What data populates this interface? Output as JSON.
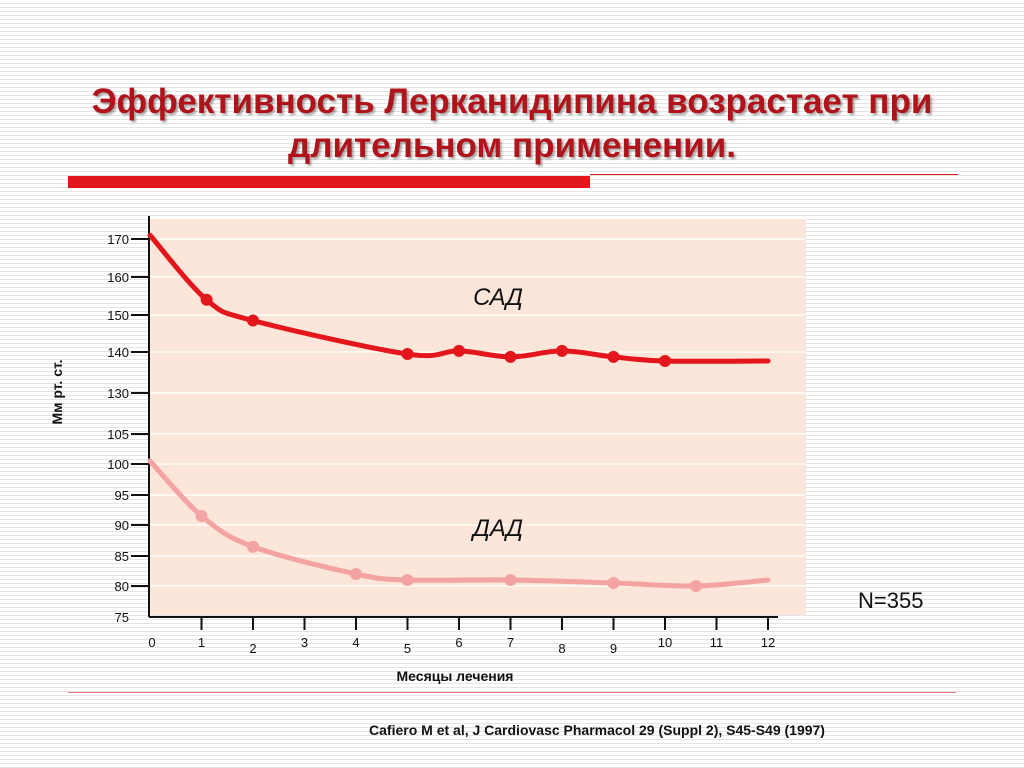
{
  "slide": {
    "title_line1": "Эффективность Лерканидипина возрастает при",
    "title_line2": "длительном применении.",
    "n_label": "N=355",
    "citation": "Cafiero M et al, J Cardiovasc Pharmacol 29 (Suppl 2), S45-S49 (1997)"
  },
  "colors": {
    "title": "#b0141a",
    "accent_bar": "#e3161c",
    "plot_background": "#fce6da",
    "sad_line": "#e3161c",
    "dad_line": "#f3a3a1"
  },
  "chart_data": {
    "type": "line",
    "xlabel": "Месяцы лечения",
    "ylabel": "Мм рт. ст.",
    "x_ticks": [
      0,
      1,
      2,
      3,
      4,
      5,
      6,
      7,
      8,
      9,
      10,
      11,
      12
    ],
    "y_ticks_upper": [
      130,
      140,
      150,
      160,
      170
    ],
    "y_ticks_lower": [
      75,
      80,
      85,
      90,
      95,
      100,
      105
    ],
    "grid": true,
    "series": [
      {
        "name": "САД",
        "x": [
          0,
          1.1,
          2,
          5,
          6,
          7,
          8,
          9,
          10,
          12
        ],
        "y": [
          171,
          154,
          148.5,
          139.5,
          140.3,
          138.8,
          140.3,
          138.8,
          137.8,
          137.8
        ],
        "marker_indices": [
          1,
          2,
          3,
          4,
          5,
          6,
          7,
          8
        ]
      },
      {
        "name": "ДАД",
        "x": [
          0,
          1,
          2,
          4,
          5,
          7,
          9,
          10.6,
          12
        ],
        "y": [
          100.5,
          91.5,
          86.5,
          82,
          81,
          81,
          80.5,
          80,
          81
        ],
        "marker_indices": [
          1,
          2,
          3,
          4,
          5,
          6,
          7
        ]
      }
    ]
  }
}
